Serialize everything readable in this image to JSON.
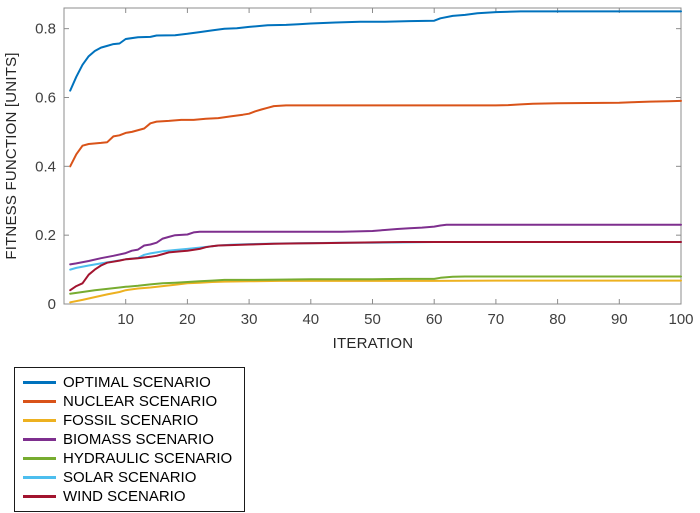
{
  "chart_data": {
    "type": "line",
    "title": "",
    "xlabel": "ITERATION",
    "ylabel": "FITNESS FUNCTION [UNITS]",
    "xlim": [
      0,
      100
    ],
    "ylim": [
      0,
      0.86
    ],
    "x_ticks": [
      10,
      20,
      30,
      40,
      50,
      60,
      70,
      80,
      90,
      100
    ],
    "y_ticks": [
      0,
      0.2,
      0.4,
      0.6,
      0.8
    ],
    "grid": false,
    "legend_position": "below-left",
    "axis_color": "#8c8c8c",
    "tick_label_color": "#3f3f3f",
    "series": [
      {
        "name": "OPTIMAL SCENARIO",
        "color": "#0072BD",
        "points": [
          [
            1,
            0.62
          ],
          [
            2,
            0.66
          ],
          [
            3,
            0.695
          ],
          [
            4,
            0.72
          ],
          [
            5,
            0.735
          ],
          [
            6,
            0.745
          ],
          [
            7,
            0.75
          ],
          [
            8,
            0.755
          ],
          [
            9,
            0.757
          ],
          [
            10,
            0.77
          ],
          [
            12,
            0.775
          ],
          [
            14,
            0.776
          ],
          [
            15,
            0.78
          ],
          [
            18,
            0.781
          ],
          [
            20,
            0.785
          ],
          [
            22,
            0.79
          ],
          [
            24,
            0.795
          ],
          [
            26,
            0.8
          ],
          [
            28,
            0.801
          ],
          [
            30,
            0.805
          ],
          [
            33,
            0.81
          ],
          [
            36,
            0.811
          ],
          [
            38,
            0.813
          ],
          [
            40,
            0.815
          ],
          [
            44,
            0.818
          ],
          [
            48,
            0.82
          ],
          [
            52,
            0.82
          ],
          [
            56,
            0.822
          ],
          [
            60,
            0.823
          ],
          [
            61,
            0.83
          ],
          [
            63,
            0.837
          ],
          [
            65,
            0.84
          ],
          [
            67,
            0.845
          ],
          [
            70,
            0.848
          ],
          [
            74,
            0.85
          ],
          [
            80,
            0.85
          ],
          [
            90,
            0.85
          ],
          [
            100,
            0.85
          ]
        ]
      },
      {
        "name": "NUCLEAR SCENARIO",
        "color": "#D95319",
        "points": [
          [
            1,
            0.4
          ],
          [
            2,
            0.435
          ],
          [
            3,
            0.46
          ],
          [
            4,
            0.465
          ],
          [
            6,
            0.468
          ],
          [
            7,
            0.47
          ],
          [
            8,
            0.487
          ],
          [
            9,
            0.49
          ],
          [
            10,
            0.497
          ],
          [
            11,
            0.5
          ],
          [
            13,
            0.51
          ],
          [
            14,
            0.525
          ],
          [
            15,
            0.53
          ],
          [
            17,
            0.532
          ],
          [
            19,
            0.535
          ],
          [
            21,
            0.535
          ],
          [
            23,
            0.538
          ],
          [
            25,
            0.54
          ],
          [
            27,
            0.545
          ],
          [
            29,
            0.55
          ],
          [
            30,
            0.553
          ],
          [
            31,
            0.56
          ],
          [
            32,
            0.565
          ],
          [
            33,
            0.57
          ],
          [
            34,
            0.575
          ],
          [
            36,
            0.577
          ],
          [
            45,
            0.577
          ],
          [
            55,
            0.577
          ],
          [
            65,
            0.577
          ],
          [
            70,
            0.577
          ],
          [
            72,
            0.578
          ],
          [
            74,
            0.58
          ],
          [
            76,
            0.582
          ],
          [
            80,
            0.583
          ],
          [
            85,
            0.584
          ],
          [
            90,
            0.585
          ],
          [
            92,
            0.586
          ],
          [
            95,
            0.588
          ],
          [
            98,
            0.589
          ],
          [
            100,
            0.59
          ]
        ]
      },
      {
        "name": "FOSSIL SCENARIO",
        "color": "#EDB120",
        "points": [
          [
            1,
            0.005
          ],
          [
            3,
            0.012
          ],
          [
            5,
            0.02
          ],
          [
            7,
            0.028
          ],
          [
            9,
            0.035
          ],
          [
            10,
            0.04
          ],
          [
            12,
            0.045
          ],
          [
            14,
            0.048
          ],
          [
            16,
            0.052
          ],
          [
            18,
            0.056
          ],
          [
            20,
            0.06
          ],
          [
            22,
            0.062
          ],
          [
            24,
            0.064
          ],
          [
            26,
            0.065
          ],
          [
            30,
            0.066
          ],
          [
            35,
            0.067
          ],
          [
            40,
            0.067
          ],
          [
            50,
            0.067
          ],
          [
            60,
            0.067
          ],
          [
            70,
            0.068
          ],
          [
            80,
            0.068
          ],
          [
            90,
            0.068
          ],
          [
            100,
            0.068
          ]
        ]
      },
      {
        "name": "BIOMASS SCENARIO",
        "color": "#7E2F8E",
        "points": [
          [
            1,
            0.115
          ],
          [
            2,
            0.118
          ],
          [
            4,
            0.125
          ],
          [
            6,
            0.133
          ],
          [
            8,
            0.14
          ],
          [
            10,
            0.148
          ],
          [
            11,
            0.155
          ],
          [
            12,
            0.158
          ],
          [
            13,
            0.17
          ],
          [
            14,
            0.173
          ],
          [
            15,
            0.178
          ],
          [
            16,
            0.19
          ],
          [
            17,
            0.195
          ],
          [
            18,
            0.2
          ],
          [
            20,
            0.202
          ],
          [
            21,
            0.208
          ],
          [
            22,
            0.21
          ],
          [
            25,
            0.21
          ],
          [
            30,
            0.21
          ],
          [
            35,
            0.21
          ],
          [
            40,
            0.21
          ],
          [
            45,
            0.21
          ],
          [
            50,
            0.212
          ],
          [
            52,
            0.215
          ],
          [
            54,
            0.218
          ],
          [
            56,
            0.22
          ],
          [
            58,
            0.222
          ],
          [
            60,
            0.225
          ],
          [
            61,
            0.228
          ],
          [
            62,
            0.23
          ],
          [
            65,
            0.23
          ],
          [
            70,
            0.23
          ],
          [
            80,
            0.23
          ],
          [
            90,
            0.23
          ],
          [
            100,
            0.23
          ]
        ]
      },
      {
        "name": "HYDRAULIC SCENARIO",
        "color": "#77AC30",
        "points": [
          [
            1,
            0.03
          ],
          [
            3,
            0.035
          ],
          [
            5,
            0.04
          ],
          [
            7,
            0.044
          ],
          [
            9,
            0.048
          ],
          [
            10,
            0.05
          ],
          [
            12,
            0.053
          ],
          [
            14,
            0.057
          ],
          [
            16,
            0.06
          ],
          [
            18,
            0.062
          ],
          [
            20,
            0.064
          ],
          [
            22,
            0.066
          ],
          [
            24,
            0.068
          ],
          [
            26,
            0.07
          ],
          [
            30,
            0.07
          ],
          [
            35,
            0.071
          ],
          [
            40,
            0.072
          ],
          [
            45,
            0.072
          ],
          [
            50,
            0.072
          ],
          [
            55,
            0.073
          ],
          [
            60,
            0.073
          ],
          [
            61,
            0.076
          ],
          [
            63,
            0.079
          ],
          [
            65,
            0.08
          ],
          [
            70,
            0.08
          ],
          [
            80,
            0.08
          ],
          [
            90,
            0.08
          ],
          [
            100,
            0.08
          ]
        ]
      },
      {
        "name": "SOLAR SCENARIO",
        "color": "#4DBEEE",
        "points": [
          [
            1,
            0.1
          ],
          [
            2,
            0.105
          ],
          [
            4,
            0.112
          ],
          [
            6,
            0.118
          ],
          [
            8,
            0.124
          ],
          [
            10,
            0.13
          ],
          [
            12,
            0.134
          ],
          [
            13,
            0.143
          ],
          [
            14,
            0.147
          ],
          [
            15,
            0.15
          ],
          [
            16,
            0.153
          ],
          [
            18,
            0.157
          ],
          [
            20,
            0.16
          ],
          [
            22,
            0.164
          ],
          [
            24,
            0.168
          ],
          [
            25,
            0.17
          ],
          [
            27,
            0.172
          ],
          [
            30,
            0.174
          ],
          [
            33,
            0.175
          ],
          [
            36,
            0.176
          ],
          [
            40,
            0.177
          ],
          [
            45,
            0.178
          ],
          [
            50,
            0.178
          ],
          [
            55,
            0.179
          ],
          [
            60,
            0.18
          ],
          [
            70,
            0.18
          ],
          [
            80,
            0.18
          ],
          [
            90,
            0.18
          ],
          [
            100,
            0.18
          ]
        ]
      },
      {
        "name": "WIND SCENARIO",
        "color": "#A2142F",
        "points": [
          [
            1,
            0.04
          ],
          [
            2,
            0.052
          ],
          [
            3,
            0.06
          ],
          [
            4,
            0.085
          ],
          [
            5,
            0.1
          ],
          [
            6,
            0.112
          ],
          [
            7,
            0.12
          ],
          [
            8,
            0.123
          ],
          [
            9,
            0.126
          ],
          [
            10,
            0.13
          ],
          [
            12,
            0.133
          ],
          [
            14,
            0.137
          ],
          [
            15,
            0.14
          ],
          [
            16,
            0.145
          ],
          [
            17,
            0.15
          ],
          [
            19,
            0.153
          ],
          [
            20,
            0.155
          ],
          [
            22,
            0.16
          ],
          [
            23,
            0.165
          ],
          [
            24,
            0.168
          ],
          [
            25,
            0.17
          ],
          [
            27,
            0.171
          ],
          [
            30,
            0.173
          ],
          [
            34,
            0.175
          ],
          [
            38,
            0.176
          ],
          [
            42,
            0.177
          ],
          [
            46,
            0.178
          ],
          [
            50,
            0.179
          ],
          [
            55,
            0.18
          ],
          [
            60,
            0.18
          ],
          [
            70,
            0.18
          ],
          [
            80,
            0.18
          ],
          [
            90,
            0.18
          ],
          [
            100,
            0.18
          ]
        ]
      }
    ]
  }
}
